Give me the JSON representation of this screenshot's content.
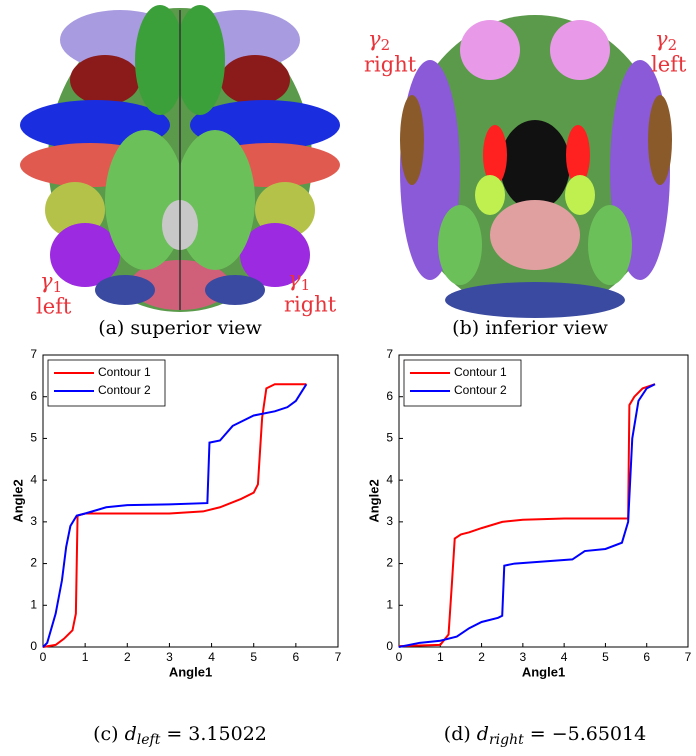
{
  "panels": [
    {
      "caption": "(a) superior view",
      "annotations": [
        {
          "symbol": "γ",
          "subscript": "1",
          "label": "left"
        },
        {
          "symbol": "γ",
          "subscript": "1",
          "label": "right"
        }
      ]
    },
    {
      "caption": "(b) inferior view",
      "annotations": [
        {
          "symbol": "γ",
          "subscript": "2",
          "label": "right"
        },
        {
          "symbol": "γ",
          "subscript": "2",
          "label": "left"
        }
      ]
    }
  ],
  "chart_data": [
    {
      "type": "line",
      "xlabel": "Angle1",
      "ylabel": "Angle2",
      "caption": {
        "label": "(c)",
        "variable": "d",
        "subscript": "left",
        "equation": "= 3.15022"
      },
      "xlim": [
        0,
        7
      ],
      "ylim": [
        0,
        7
      ],
      "xticks": [
        0,
        1,
        2,
        3,
        4,
        5,
        6,
        7
      ],
      "yticks": [
        0,
        1,
        2,
        3,
        4,
        5,
        6,
        7
      ],
      "legend": "upper left",
      "series": [
        {
          "name": "Contour 1",
          "color": "#ff0000",
          "x": [
            0,
            0.3,
            0.5,
            0.7,
            0.78,
            0.82,
            1.0,
            2,
            3,
            3.8,
            4.2,
            4.7,
            5.0,
            5.1,
            5.2,
            5.3,
            5.5,
            6.0,
            6.25
          ],
          "values": [
            0,
            0.05,
            0.2,
            0.4,
            0.8,
            3.15,
            3.2,
            3.2,
            3.2,
            3.25,
            3.35,
            3.55,
            3.7,
            3.9,
            5.5,
            6.2,
            6.3,
            6.3,
            6.3
          ]
        },
        {
          "name": "Contour 2",
          "color": "#0000ff",
          "x": [
            0,
            0.1,
            0.3,
            0.45,
            0.55,
            0.65,
            0.8,
            1.0,
            1.5,
            2,
            3,
            3.9,
            3.95,
            4.2,
            4.5,
            5,
            5.5,
            5.8,
            6.0,
            6.25
          ],
          "values": [
            0,
            0.1,
            0.8,
            1.6,
            2.4,
            2.9,
            3.15,
            3.2,
            3.35,
            3.4,
            3.42,
            3.45,
            4.9,
            4.95,
            5.3,
            5.55,
            5.65,
            5.75,
            5.9,
            6.3
          ]
        }
      ]
    },
    {
      "type": "line",
      "xlabel": "Angle1",
      "ylabel": "Angle2",
      "caption": {
        "label": "(d)",
        "variable": "d",
        "subscript": "right",
        "equation": "= −5.65014"
      },
      "xlim": [
        0,
        7
      ],
      "ylim": [
        0,
        7
      ],
      "xticks": [
        0,
        1,
        2,
        3,
        4,
        5,
        6,
        7
      ],
      "yticks": [
        0,
        1,
        2,
        3,
        4,
        5,
        6,
        7
      ],
      "legend": "upper left",
      "series": [
        {
          "name": "Contour 1",
          "color": "#ff0000",
          "x": [
            0,
            1.0,
            1.2,
            1.28,
            1.35,
            1.5,
            1.7,
            2.0,
            2.5,
            3.0,
            4,
            5.55,
            5.58,
            5.7,
            5.9,
            6.2
          ],
          "values": [
            0.02,
            0.05,
            0.3,
            1.5,
            2.6,
            2.7,
            2.75,
            2.85,
            3.0,
            3.05,
            3.08,
            3.08,
            5.8,
            6.0,
            6.2,
            6.3
          ]
        },
        {
          "name": "Contour 2",
          "color": "#0000ff",
          "x": [
            0,
            0.5,
            1.0,
            1.4,
            1.7,
            2.0,
            2.4,
            2.5,
            2.55,
            2.8,
            3.5,
            4.2,
            4.5,
            5,
            5.4,
            5.55,
            5.65,
            5.8,
            6.0,
            6.2
          ],
          "values": [
            0,
            0.1,
            0.15,
            0.25,
            0.45,
            0.6,
            0.7,
            0.75,
            1.95,
            2.0,
            2.05,
            2.1,
            2.3,
            2.35,
            2.5,
            3.0,
            5.0,
            5.9,
            6.2,
            6.3
          ]
        }
      ]
    }
  ]
}
